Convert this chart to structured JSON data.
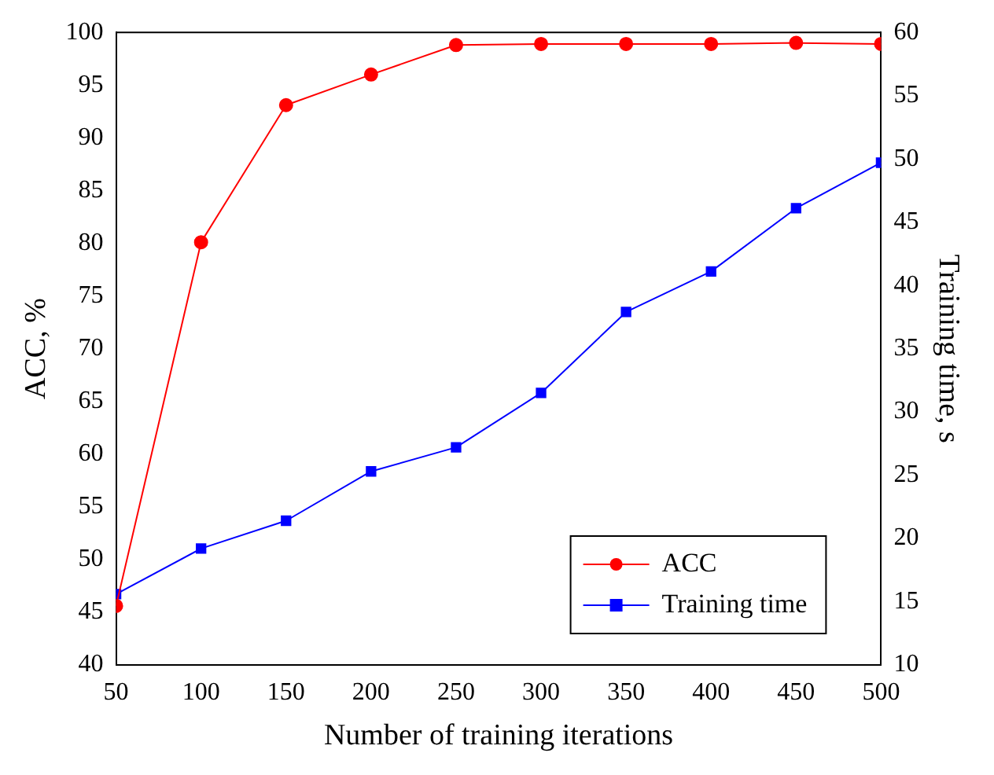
{
  "chart_data": {
    "type": "line",
    "xlabel": "Number of training iterations",
    "ylabel": "ACC, %",
    "y2label": "Training time, s",
    "x": [
      50,
      100,
      150,
      200,
      250,
      300,
      350,
      400,
      450,
      500
    ],
    "series": [
      {
        "name": "ACC",
        "color": "#ff0000",
        "marker": "circle",
        "values": [
          45.6,
          80.1,
          93.1,
          96.0,
          98.8,
          98.9,
          98.9,
          98.9,
          99.0,
          98.9
        ]
      },
      {
        "name": "Training time",
        "color": "#0000ff",
        "marker": "square",
        "axis": "y2",
        "values": [
          15.6,
          19.2,
          21.4,
          25.3,
          27.2,
          31.5,
          37.9,
          41.1,
          46.1,
          49.7
        ]
      }
    ],
    "xlim": [
      50,
      500
    ],
    "xticks": [
      50,
      100,
      150,
      200,
      250,
      300,
      350,
      400,
      450,
      500
    ],
    "ylim": [
      40,
      100
    ],
    "yticks": [
      40,
      45,
      50,
      55,
      60,
      65,
      70,
      75,
      80,
      85,
      90,
      95,
      100
    ],
    "y2lim": [
      10,
      60
    ],
    "y2ticks": [
      10,
      15,
      20,
      25,
      30,
      35,
      40,
      45,
      50,
      55,
      60
    ],
    "grid": false,
    "legend": "bottom right",
    "line_style": "solid"
  }
}
